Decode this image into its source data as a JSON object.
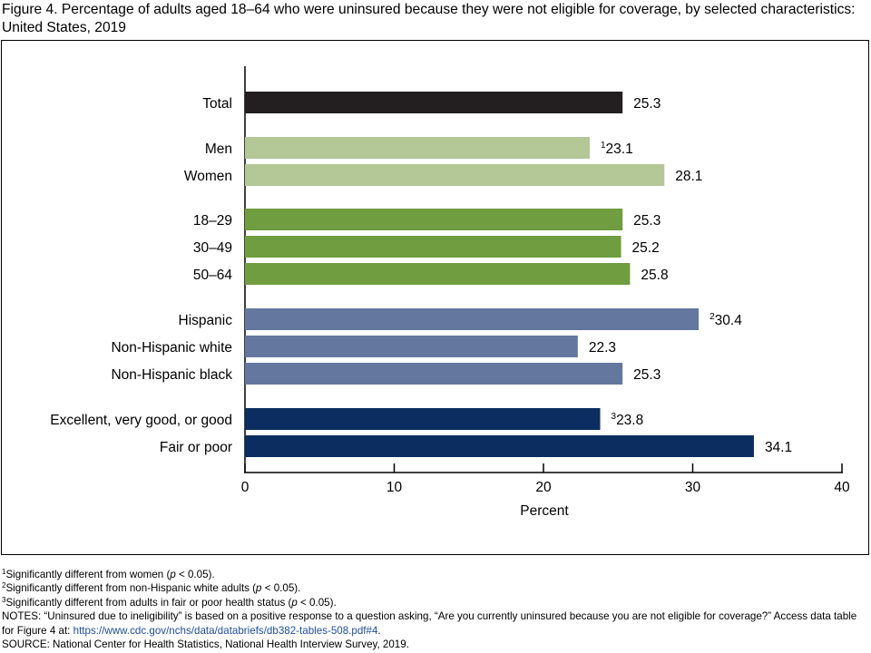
{
  "figure": {
    "title": "Figure 4. Percentage of adults aged 18–64 who were uninsured because they were not eligible for coverage, by selected characteristics: United States, 2019"
  },
  "chart_data": {
    "type": "bar",
    "orientation": "horizontal",
    "title": "Figure 4. Percentage of adults aged 18–64 who were uninsured because they were not eligible for coverage, by selected characteristics: United States, 2019",
    "xlabel": "Percent",
    "ylabel": "",
    "xlim": [
      0,
      40
    ],
    "xticks": [
      0,
      10,
      20,
      30,
      40
    ],
    "grid": false,
    "colors": {
      "total": "#231f20",
      "sex": "#b3c797",
      "age": "#6f9d3f",
      "race": "#63779f",
      "health": "#0b2d5f"
    },
    "bars": [
      {
        "label": "Total",
        "value": 25.3,
        "value_label": "25.3",
        "sup": "",
        "group": "total"
      },
      {
        "label": "Men",
        "value": 23.1,
        "value_label": "23.1",
        "sup": "1",
        "group": "sex"
      },
      {
        "label": "Women",
        "value": 28.1,
        "value_label": "28.1",
        "sup": "",
        "group": "sex"
      },
      {
        "label": "18–29",
        "value": 25.3,
        "value_label": "25.3",
        "sup": "",
        "group": "age"
      },
      {
        "label": "30–49",
        "value": 25.2,
        "value_label": "25.2",
        "sup": "",
        "group": "age"
      },
      {
        "label": "50–64",
        "value": 25.8,
        "value_label": "25.8",
        "sup": "",
        "group": "age"
      },
      {
        "label": "Hispanic",
        "value": 30.4,
        "value_label": "30.4",
        "sup": "2",
        "group": "race"
      },
      {
        "label": "Non-Hispanic white",
        "value": 22.3,
        "value_label": "22.3",
        "sup": "",
        "group": "race"
      },
      {
        "label": "Non-Hispanic black",
        "value": 25.3,
        "value_label": "25.3",
        "sup": "",
        "group": "race"
      },
      {
        "label": "Excellent, very good, or good",
        "value": 23.8,
        "value_label": "23.8",
        "sup": "3",
        "group": "health"
      },
      {
        "label": "Fair or poor",
        "value": 34.1,
        "value_label": "34.1",
        "sup": "",
        "group": "health"
      }
    ]
  },
  "notes": {
    "fn1_sup": "1",
    "fn1_a": "Significantly different from women (",
    "fn1_p": "p",
    "fn1_b": " < 0.05).",
    "fn2_sup": "2",
    "fn2_a": "Significantly different from non-Hispanic white adults (",
    "fn2_p": "p",
    "fn2_b": " < 0.05).",
    "fn3_sup": "3",
    "fn3_a": "Significantly different from adults in fair or poor health status (",
    "fn3_p": "p",
    "fn3_b": " < 0.05).",
    "notes_text": "NOTES: “Uninsured due to ineligibility” is based on a positive response to a question asking, “Are you currently uninsured because you are not eligible for coverage?” Access data table for Figure 4 at: ",
    "notes_link": "https://www.cdc.gov/nchs/data/databriefs/db382-tables-508.pdf#4",
    "notes_end": ".",
    "source": "SOURCE: National Center for Health Statistics, National Health Interview Survey, 2019."
  }
}
